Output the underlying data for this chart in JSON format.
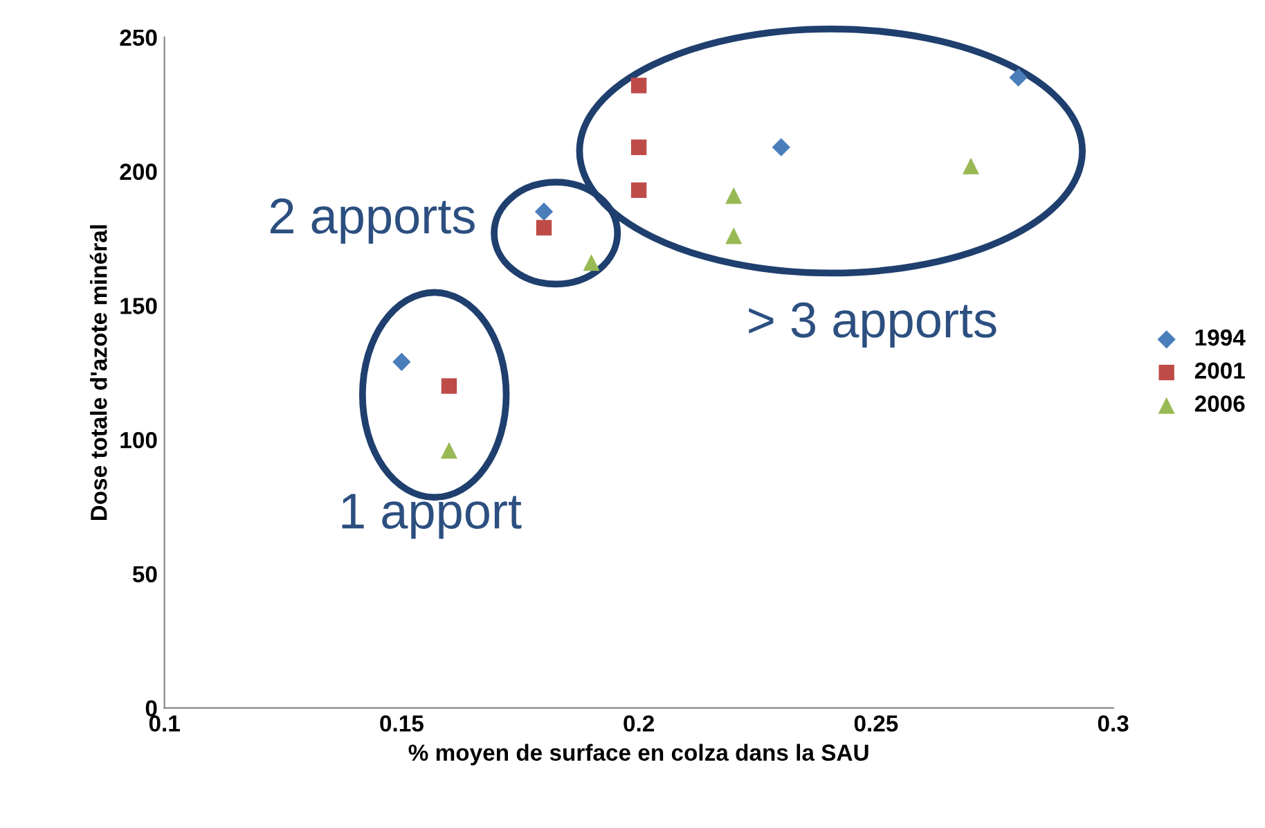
{
  "chart_data": {
    "type": "scatter",
    "xlabel": "% moyen de surface en colza dans la SAU",
    "ylabel": "Dose totale d'azote minéral",
    "series": [
      {
        "name": "1994",
        "color": "#4a7ebb",
        "marker": "diamond",
        "x": [
          0.15,
          0.18,
          0.23,
          0.28
        ],
        "values": [
          129,
          185,
          209,
          235
        ]
      },
      {
        "name": "2001",
        "color": "#be4b48",
        "marker": "square",
        "x": [
          0.16,
          0.18,
          0.2,
          0.2,
          0.2
        ],
        "values": [
          120,
          179,
          232,
          209,
          193
        ]
      },
      {
        "name": "2006",
        "color": "#98b954",
        "marker": "triangle",
        "x": [
          0.16,
          0.19,
          0.22,
          0.22,
          0.27
        ],
        "values": [
          96,
          166,
          191,
          176,
          202
        ]
      }
    ],
    "xlim": [
      0.1,
      0.3
    ],
    "xticks": [
      0.1,
      0.15,
      0.2,
      0.25,
      0.3
    ],
    "ylim": [
      0,
      250
    ],
    "yticks": [
      0,
      50,
      100,
      150,
      200,
      250
    ],
    "annotations": [
      "1 apport",
      "2 apports",
      "> 3 apports"
    ],
    "legend": "right",
    "grid": false
  }
}
